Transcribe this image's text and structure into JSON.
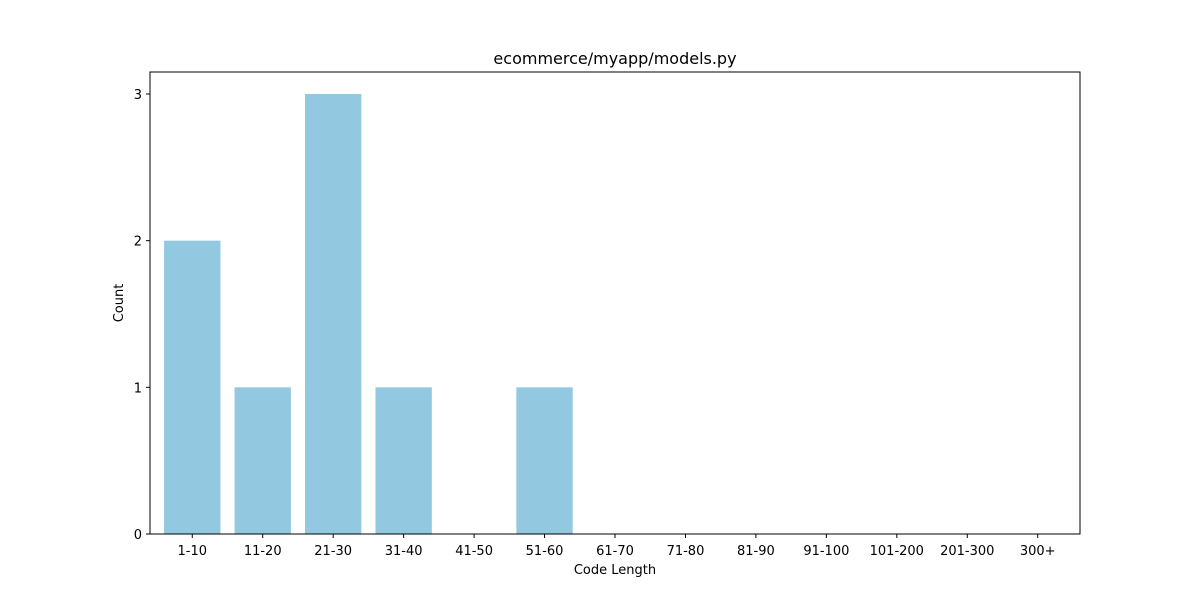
{
  "chart_data": {
    "type": "bar",
    "title": "ecommerce/myapp/models.py",
    "xlabel": "Code Length",
    "ylabel": "Count",
    "categories": [
      "1-10",
      "11-20",
      "21-30",
      "31-40",
      "41-50",
      "51-60",
      "61-70",
      "71-80",
      "81-90",
      "91-100",
      "101-200",
      "201-300",
      "300+"
    ],
    "values": [
      2,
      1,
      3,
      1,
      0,
      1,
      0,
      0,
      0,
      0,
      0,
      0,
      0
    ],
    "ylim": [
      0,
      3.15
    ],
    "yticks": [
      0,
      1,
      2,
      3
    ],
    "grid": false,
    "bar_color": "#92c9e0"
  }
}
